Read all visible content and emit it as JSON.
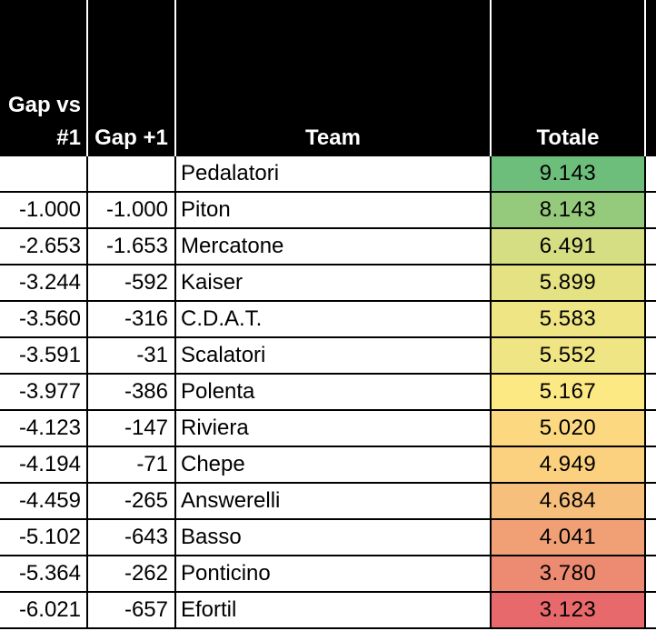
{
  "headers": {
    "gap_vs_line1": "Gap vs",
    "gap_vs_line2": "#1",
    "gap_plus1": "Gap +1",
    "team": "Team",
    "totale": "Totale"
  },
  "rows": [
    {
      "gap_vs": "",
      "gap_plus1": "",
      "team": "Pedalatori",
      "totale": "9.143",
      "color": "#6dbe7b"
    },
    {
      "gap_vs": "-1.000",
      "gap_plus1": "-1.000",
      "team": "Piton",
      "totale": "8.143",
      "color": "#95c97c"
    },
    {
      "gap_vs": "-2.653",
      "gap_plus1": "-1.653",
      "team": "Mercatone",
      "totale": "6.491",
      "color": "#d5de82"
    },
    {
      "gap_vs": "-3.244",
      "gap_plus1": "-592",
      "team": "Kaiser",
      "totale": "5.899",
      "color": "#e5e283"
    },
    {
      "gap_vs": "-3.560",
      "gap_plus1": "-316",
      "team": "C.D.A.T.",
      "totale": "5.583",
      "color": "#efe584"
    },
    {
      "gap_vs": "-3.591",
      "gap_plus1": "-31",
      "team": "Scalatori",
      "totale": "5.552",
      "color": "#f0e584"
    },
    {
      "gap_vs": "-3.977",
      "gap_plus1": "-386",
      "team": "Polenta",
      "totale": "5.167",
      "color": "#fde984"
    },
    {
      "gap_vs": "-4.123",
      "gap_plus1": "-147",
      "team": "Riviera",
      "totale": "5.020",
      "color": "#fcd880"
    },
    {
      "gap_vs": "-4.194",
      "gap_plus1": "-71",
      "team": "Chepe",
      "totale": "4.949",
      "color": "#fbd07e"
    },
    {
      "gap_vs": "-4.459",
      "gap_plus1": "-265",
      "team": "Answerelli",
      "totale": "4.684",
      "color": "#f7bf7c"
    },
    {
      "gap_vs": "-5.102",
      "gap_plus1": "-643",
      "team": "Basso",
      "totale": "4.041",
      "color": "#f1a076"
    },
    {
      "gap_vs": "-5.364",
      "gap_plus1": "-262",
      "team": "Ponticino",
      "totale": "3.780",
      "color": "#ec8b72"
    },
    {
      "gap_vs": "-6.021",
      "gap_plus1": "-657",
      "team": "Efortil",
      "totale": "3.123",
      "color": "#e7696b"
    }
  ]
}
